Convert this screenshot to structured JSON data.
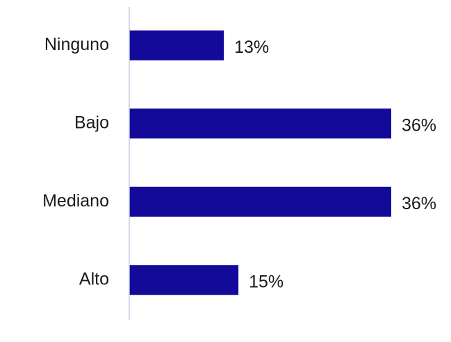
{
  "chart_data": {
    "type": "bar",
    "orientation": "horizontal",
    "categories": [
      "Ninguno",
      "Bajo",
      "Mediano",
      "Alto"
    ],
    "values": [
      13,
      36,
      36,
      15
    ],
    "value_labels": [
      "13%",
      "36%",
      "36%",
      "15%"
    ],
    "color": "#140a9a",
    "xlim": [
      0,
      36
    ]
  }
}
